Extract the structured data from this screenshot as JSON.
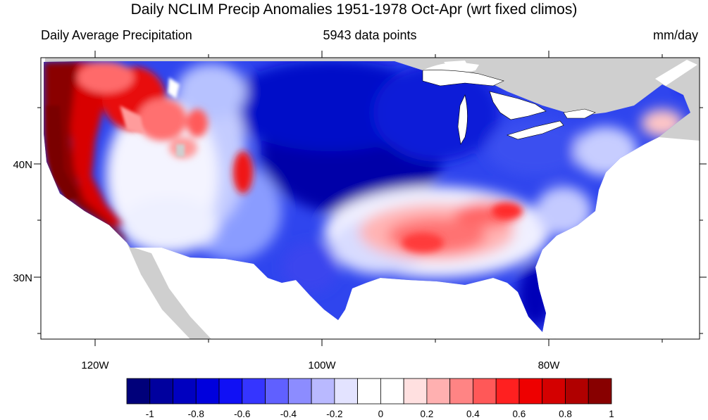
{
  "title": "Daily NCLIM Precip Anomalies 1951-1978 Oct-Apr (wrt fixed climos)",
  "subtitle_left": "Daily Average Precipitation",
  "subtitle_center": "5943 data points",
  "subtitle_right": "mm/day",
  "map": {
    "lat_labels": [
      "40N",
      "30N"
    ],
    "lon_labels": [
      "120W",
      "100W",
      "80W"
    ],
    "land_outside_domain_color": "#cfcfcf",
    "water_color": "#ffffff"
  },
  "colorbar": {
    "colors": [
      "#00007a",
      "#00009e",
      "#0000c0",
      "#0000dd",
      "#1010f5",
      "#3535ff",
      "#6060ff",
      "#8c8cff",
      "#b9b9ff",
      "#e3e3ff",
      "#ffffff",
      "#ffffff",
      "#ffe0e0",
      "#ffb0b0",
      "#ff8484",
      "#ff5858",
      "#ff2020",
      "#ee0000",
      "#d40000",
      "#b00000",
      "#880000"
    ],
    "tick_labels": [
      "-1",
      "-0.8",
      "-0.6",
      "-0.4",
      "-0.2",
      "0",
      "0.2",
      "0.4",
      "0.6",
      "0.8",
      "1"
    ]
  }
}
